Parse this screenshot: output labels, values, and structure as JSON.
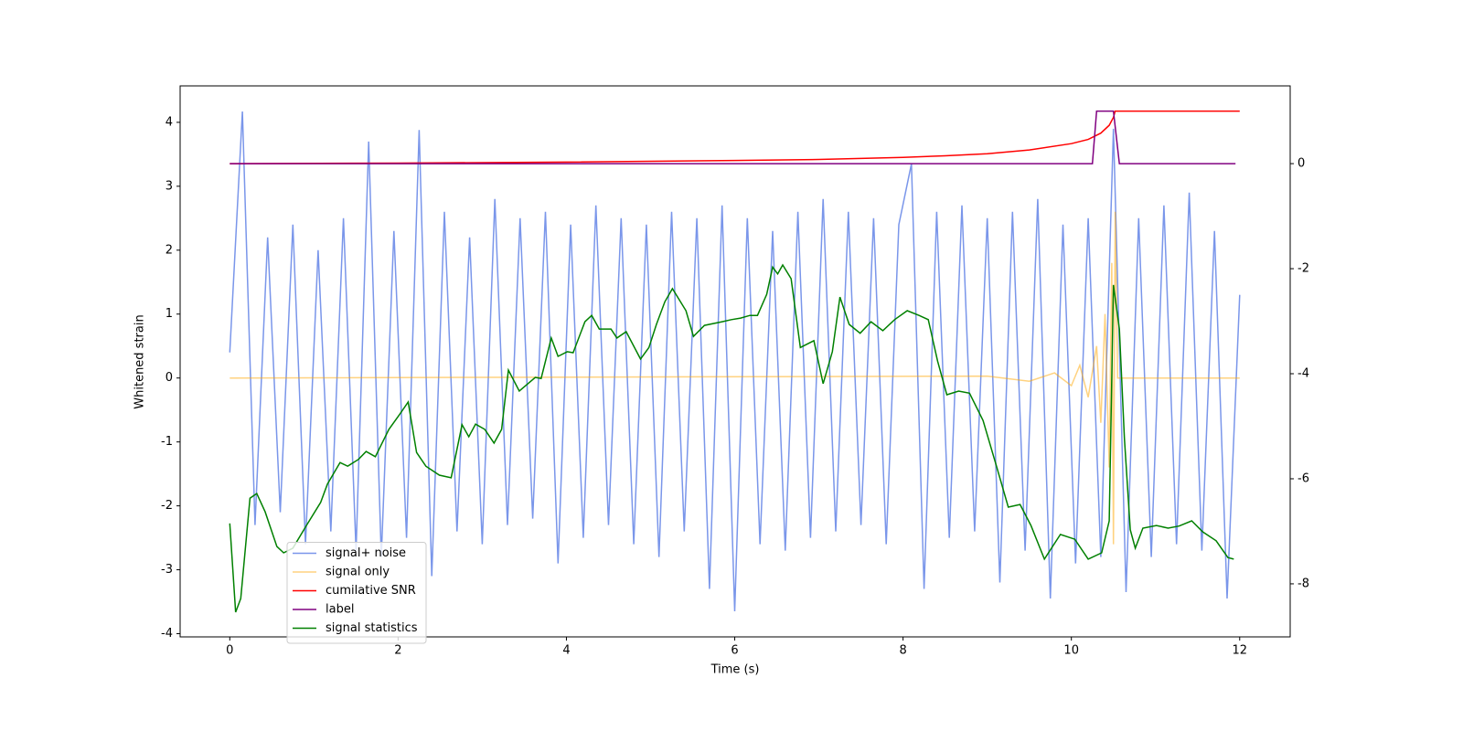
{
  "chart_data": {
    "type": "line",
    "xlabel": "Time (s)",
    "ylabel": "Whitened strain",
    "xlim": [
      -0.59,
      12.6
    ],
    "xticks": [
      0,
      2,
      4,
      6,
      8,
      10,
      12
    ],
    "ylim": [
      -4.05,
      4.57
    ],
    "yticks": [
      -4,
      -3,
      -2,
      -1,
      0,
      1,
      2,
      3,
      4
    ],
    "y2lim": [
      -9.01,
      1.48
    ],
    "y2ticks": [
      -8,
      -6,
      -4,
      -2,
      0
    ],
    "legend": "lower left",
    "grid": false,
    "series": [
      {
        "name": "signal+ noise",
        "color": "royalblue",
        "opacity": 0.7,
        "x": [
          0,
          0.15,
          0.3,
          0.45,
          0.6,
          0.75,
          0.9,
          1.05,
          1.2,
          1.35,
          1.5,
          1.65,
          1.8,
          1.95,
          2.1,
          2.25,
          2.4,
          2.55,
          2.7,
          2.85,
          3,
          3.15,
          3.3,
          3.45,
          3.6,
          3.75,
          3.9,
          4.05,
          4.2,
          4.35,
          4.5,
          4.65,
          4.8,
          4.95,
          5.1,
          5.25,
          5.4,
          5.55,
          5.7,
          5.85,
          6,
          6.15,
          6.3,
          6.45,
          6.6,
          6.75,
          6.9,
          7.05,
          7.2,
          7.35,
          7.5,
          7.65,
          7.8,
          7.95,
          8.1,
          8.25,
          8.4,
          8.55,
          8.7,
          8.85,
          9,
          9.15,
          9.3,
          9.45,
          9.6,
          9.75,
          9.9,
          10.05,
          10.2,
          10.35,
          10.5,
          10.65,
          10.8,
          10.95,
          11.1,
          11.25,
          11.4,
          11.55,
          11.7,
          11.85,
          12
        ],
        "values": [
          0.4,
          4.17,
          -2.3,
          2.2,
          -2.1,
          2.4,
          -2.6,
          2.0,
          -2.4,
          2.5,
          -2.7,
          3.7,
          -2.8,
          2.3,
          -2.5,
          3.88,
          -3.1,
          2.6,
          -2.4,
          2.2,
          -2.6,
          2.8,
          -2.3,
          2.5,
          -2.2,
          2.6,
          -2.9,
          2.4,
          -2.5,
          2.7,
          -2.3,
          2.5,
          -2.6,
          2.4,
          -2.8,
          2.6,
          -2.4,
          2.5,
          -3.3,
          2.7,
          -3.65,
          2.5,
          -2.6,
          2.3,
          -2.7,
          2.6,
          -2.5,
          2.8,
          -2.4,
          2.6,
          -2.3,
          2.5,
          -2.6,
          2.4,
          3.35,
          -3.3,
          2.6,
          -2.5,
          2.7,
          -2.4,
          2.5,
          -3.2,
          2.6,
          -2.7,
          2.8,
          -3.45,
          2.4,
          -2.9,
          2.5,
          -2.8,
          3.9,
          -3.35,
          2.5,
          -2.8,
          2.7,
          -2.6,
          2.9,
          -2.7,
          2.3,
          -3.45,
          1.3
        ]
      },
      {
        "name": "signal only",
        "color": "orange",
        "opacity": 0.5,
        "x": [
          0,
          9,
          9.5,
          9.8,
          10,
          10.1,
          10.2,
          10.3,
          10.35,
          10.4,
          10.45,
          10.48,
          10.5,
          10.52,
          10.55,
          12
        ],
        "values": [
          0,
          0.03,
          -0.05,
          0.08,
          -0.12,
          0.2,
          -0.3,
          0.5,
          -0.7,
          1.0,
          -1.4,
          1.8,
          -2.6,
          2.6,
          0,
          0
        ]
      },
      {
        "name": "cumilative SNR",
        "color": "red",
        "opacity": 1,
        "axis": "y2",
        "x": [
          0,
          2,
          4,
          6,
          7,
          8,
          8.5,
          9,
          9.5,
          10,
          10.2,
          10.35,
          10.45,
          10.5,
          10.52,
          12
        ],
        "values": [
          0,
          0.01,
          0.03,
          0.06,
          0.08,
          0.12,
          0.15,
          0.19,
          0.26,
          0.38,
          0.46,
          0.58,
          0.73,
          0.88,
          1.0,
          1.0
        ]
      },
      {
        "name": "label",
        "color": "purple",
        "opacity": 1,
        "axis": "y2",
        "x": [
          0,
          10.25,
          10.3,
          10.5,
          10.57,
          11.95
        ],
        "values": [
          0,
          0,
          1,
          1,
          0,
          0
        ]
      },
      {
        "name": "signal statistics",
        "color": "green",
        "opacity": 1,
        "axis": "y2",
        "x": [
          0,
          0.07,
          0.13,
          0.24,
          0.32,
          0.42,
          0.56,
          0.64,
          0.75,
          0.91,
          1.08,
          1.16,
          1.31,
          1.4,
          1.53,
          1.62,
          1.73,
          1.89,
          2.02,
          2.12,
          2.22,
          2.33,
          2.49,
          2.63,
          2.76,
          2.84,
          2.92,
          3.03,
          3.14,
          3.23,
          3.31,
          3.44,
          3.63,
          3.7,
          3.82,
          3.9,
          4.01,
          4.08,
          4.22,
          4.3,
          4.39,
          4.53,
          4.6,
          4.71,
          4.88,
          4.98,
          5.07,
          5.17,
          5.26,
          5.42,
          5.51,
          5.64,
          5.85,
          5.96,
          6.07,
          6.18,
          6.27,
          6.38,
          6.45,
          6.51,
          6.57,
          6.67,
          6.78,
          6.94,
          7.05,
          7.16,
          7.25,
          7.36,
          7.49,
          7.62,
          7.76,
          7.9,
          8.05,
          8.19,
          8.3,
          8.41,
          8.52,
          8.66,
          8.79,
          8.95,
          9.11,
          9.25,
          9.39,
          9.52,
          9.68,
          9.87,
          10.04,
          10.2,
          10.36,
          10.45,
          10.5,
          10.57,
          10.63,
          10.7,
          10.76,
          10.85,
          11.01,
          11.15,
          11.28,
          11.43,
          11.56,
          11.72,
          11.86,
          11.93
        ],
        "values": [
          -6.85,
          -8.54,
          -8.28,
          -6.37,
          -6.28,
          -6.63,
          -7.29,
          -7.41,
          -7.32,
          -6.89,
          -6.45,
          -6.1,
          -5.69,
          -5.76,
          -5.63,
          -5.48,
          -5.58,
          -5.06,
          -4.77,
          -4.54,
          -5.5,
          -5.76,
          -5.93,
          -5.98,
          -4.97,
          -5.2,
          -4.96,
          -5.06,
          -5.32,
          -5.06,
          -3.93,
          -4.33,
          -4.07,
          -4.09,
          -3.32,
          -3.67,
          -3.58,
          -3.6,
          -3.01,
          -2.89,
          -3.15,
          -3.15,
          -3.32,
          -3.2,
          -3.72,
          -3.5,
          -3.06,
          -2.63,
          -2.38,
          -2.8,
          -3.29,
          -3.08,
          -3.01,
          -2.97,
          -2.94,
          -2.89,
          -2.89,
          -2.49,
          -1.97,
          -2.1,
          -1.93,
          -2.19,
          -3.5,
          -3.37,
          -4.19,
          -3.58,
          -2.54,
          -3.06,
          -3.23,
          -3.01,
          -3.18,
          -2.97,
          -2.8,
          -2.89,
          -2.97,
          -3.76,
          -4.4,
          -4.33,
          -4.37,
          -4.89,
          -5.76,
          -6.54,
          -6.49,
          -6.89,
          -7.53,
          -7.06,
          -7.15,
          -7.53,
          -7.41,
          -6.8,
          -2.31,
          -3.15,
          -5.23,
          -6.97,
          -7.32,
          -6.94,
          -6.89,
          -6.94,
          -6.9,
          -6.8,
          -7.01,
          -7.18,
          -7.5,
          -7.53
        ]
      }
    ]
  }
}
